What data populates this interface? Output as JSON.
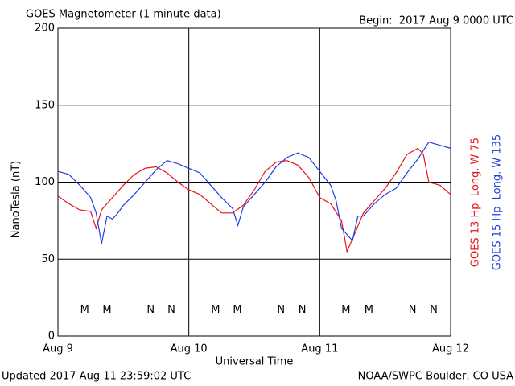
{
  "chart_data": {
    "type": "line",
    "title": "GOES Magnetometer (1 minute data)",
    "subtitle": "Begin:  2017 Aug 9 0000 UTC",
    "ylabel": "NanoTesla (nT)",
    "xlabel": "Universal Time",
    "footer_left": "Updated 2017 Aug 11 23:59:02 UTC",
    "footer_right": "NOAA/SWPC Boulder, CO USA",
    "xlim": [
      0,
      72
    ],
    "xticks": [
      {
        "value": 0,
        "label": "Aug 9"
      },
      {
        "value": 24,
        "label": "Aug 10"
      },
      {
        "value": 48,
        "label": "Aug 11"
      },
      {
        "value": 72,
        "label": "Aug 12"
      }
    ],
    "ylim": [
      0,
      200
    ],
    "yticks": [
      0,
      50,
      100,
      150,
      200
    ],
    "grid": true,
    "marker_y": 17,
    "series": [
      {
        "name": "GOES 13 Hp  Long. W 75",
        "color": "#e8141a",
        "x": [
          0,
          2,
          4,
          6,
          7,
          8,
          10,
          12,
          14,
          16,
          18,
          20,
          22,
          24,
          26,
          28,
          30,
          32,
          34,
          36,
          38,
          40,
          42,
          44,
          46,
          48,
          50,
          52,
          53,
          54,
          56,
          58,
          60,
          62,
          64,
          66,
          67,
          68,
          70,
          72
        ],
        "values": [
          91,
          86,
          82,
          81,
          70,
          82,
          90,
          98,
          105,
          109,
          110,
          106,
          100,
          95,
          92,
          86,
          80,
          80,
          85,
          95,
          107,
          113,
          114,
          111,
          103,
          90,
          86,
          75,
          55,
          63,
          80,
          88,
          96,
          106,
          118,
          122,
          118,
          100,
          98,
          92
        ],
        "markers": [
          {
            "label": "M",
            "x": 4.9
          },
          {
            "label": "N",
            "x": 17
          },
          {
            "label": "M",
            "x": 28.9
          },
          {
            "label": "N",
            "x": 40.9
          },
          {
            "label": "M",
            "x": 52.8
          },
          {
            "label": "N",
            "x": 65
          }
        ]
      },
      {
        "name": "GOES 15 Hp  Long. W 135",
        "color": "#1f3fe0",
        "x": [
          0,
          2,
          4,
          6,
          7,
          8,
          9,
          10,
          11,
          12,
          14,
          16,
          18,
          20,
          22,
          24,
          26,
          28,
          30,
          32,
          33,
          34,
          36,
          38,
          40,
          42,
          44,
          46,
          48,
          50,
          51,
          52,
          53,
          54,
          55,
          56,
          58,
          60,
          62,
          64,
          66,
          68,
          70,
          72
        ],
        "values": [
          107,
          105,
          98,
          90,
          80,
          60,
          78,
          76,
          80,
          85,
          92,
          100,
          108,
          114,
          112,
          109,
          106,
          98,
          90,
          83,
          72,
          84,
          92,
          100,
          110,
          116,
          119,
          116,
          107,
          98,
          88,
          70,
          66,
          62,
          78,
          78,
          86,
          92,
          96,
          106,
          115,
          126,
          124,
          122
        ],
        "markers": [
          {
            "label": "M",
            "x": 9
          },
          {
            "label": "N",
            "x": 20.8
          },
          {
            "label": "M",
            "x": 32.9
          },
          {
            "label": "N",
            "x": 44.8
          },
          {
            "label": "M",
            "x": 57
          },
          {
            "label": "N",
            "x": 68.9
          }
        ]
      }
    ]
  }
}
